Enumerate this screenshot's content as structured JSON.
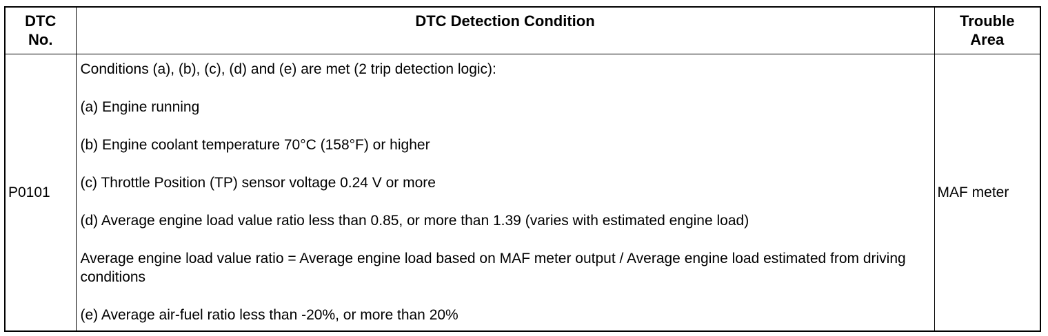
{
  "table": {
    "headers": {
      "dtc_no": [
        "DTC",
        "No."
      ],
      "condition": "DTC Detection Condition",
      "trouble_area": [
        "Trouble",
        "Area"
      ]
    },
    "rows": [
      {
        "code": "P0101",
        "conditions": [
          "Conditions (a), (b), (c), (d) and (e) are met (2 trip detection logic):",
          "(a) Engine running",
          "(b) Engine coolant temperature 70°C (158°F) or higher",
          "(c) Throttle Position (TP) sensor voltage 0.24 V or more",
          "(d) Average engine load value ratio less than 0.85, or more than 1.39 (varies with estimated engine load)",
          "Average engine load value ratio = Average engine load based on MAF meter output / Average engine load estimated from driving conditions",
          "(e) Average air-fuel ratio less than -20%, or more than 20%"
        ],
        "trouble_area": "MAF meter"
      }
    ]
  }
}
